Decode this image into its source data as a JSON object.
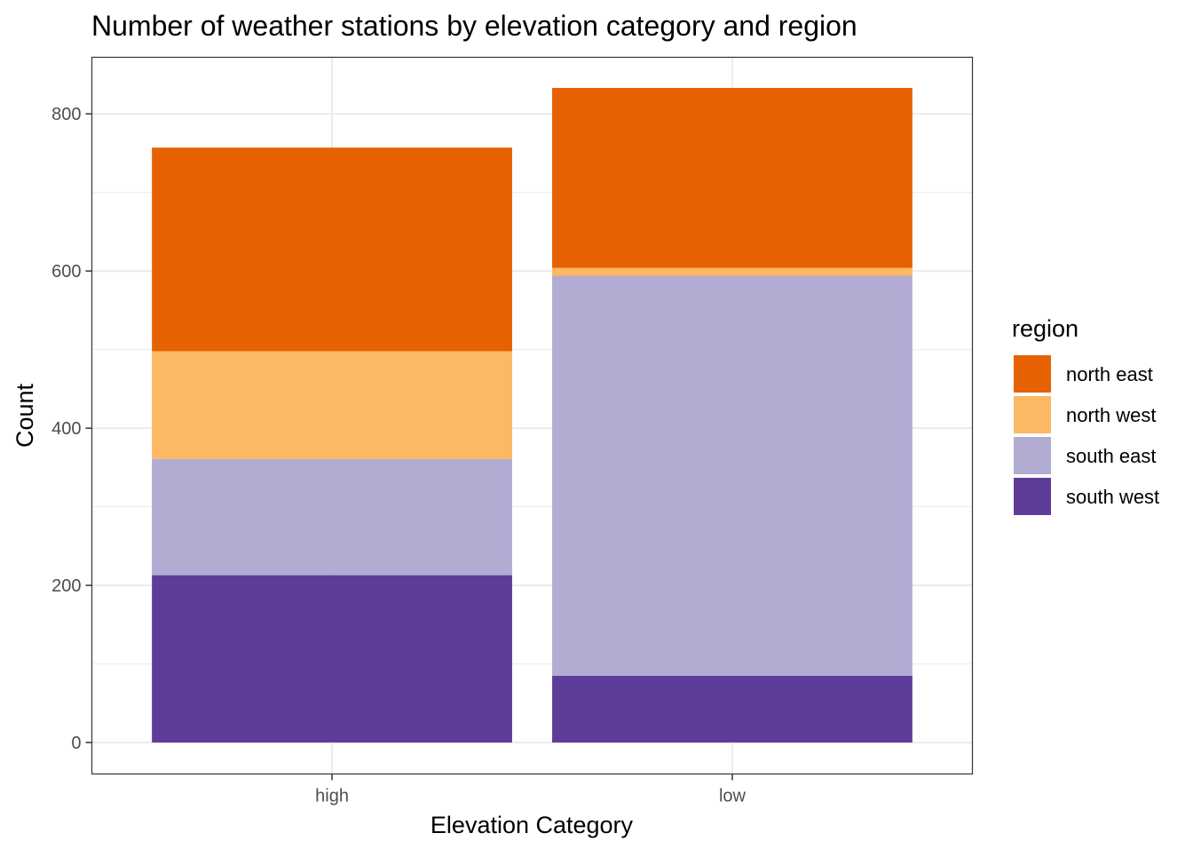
{
  "chart_data": {
    "type": "bar",
    "stacked": true,
    "title": "Number of weather stations by elevation category and region",
    "xlabel": "Elevation Category",
    "ylabel": "Count",
    "categories": [
      "high",
      "low"
    ],
    "series": [
      {
        "name": "south west",
        "color": "#5e3c99",
        "values": [
          213,
          85
        ]
      },
      {
        "name": "south east",
        "color": "#b2abd2",
        "values": [
          148,
          509
        ]
      },
      {
        "name": "north west",
        "color": "#fdb863",
        "values": [
          137,
          10
        ]
      },
      {
        "name": "north east",
        "color": "#e66101",
        "values": [
          259,
          229
        ]
      }
    ],
    "ylim": [
      -40,
      872
    ],
    "yticks": [
      0,
      200,
      400,
      600,
      800
    ],
    "grid": true,
    "legend": {
      "title": "region",
      "position": "right",
      "order": [
        "north east",
        "north west",
        "south east",
        "south west"
      ]
    }
  }
}
